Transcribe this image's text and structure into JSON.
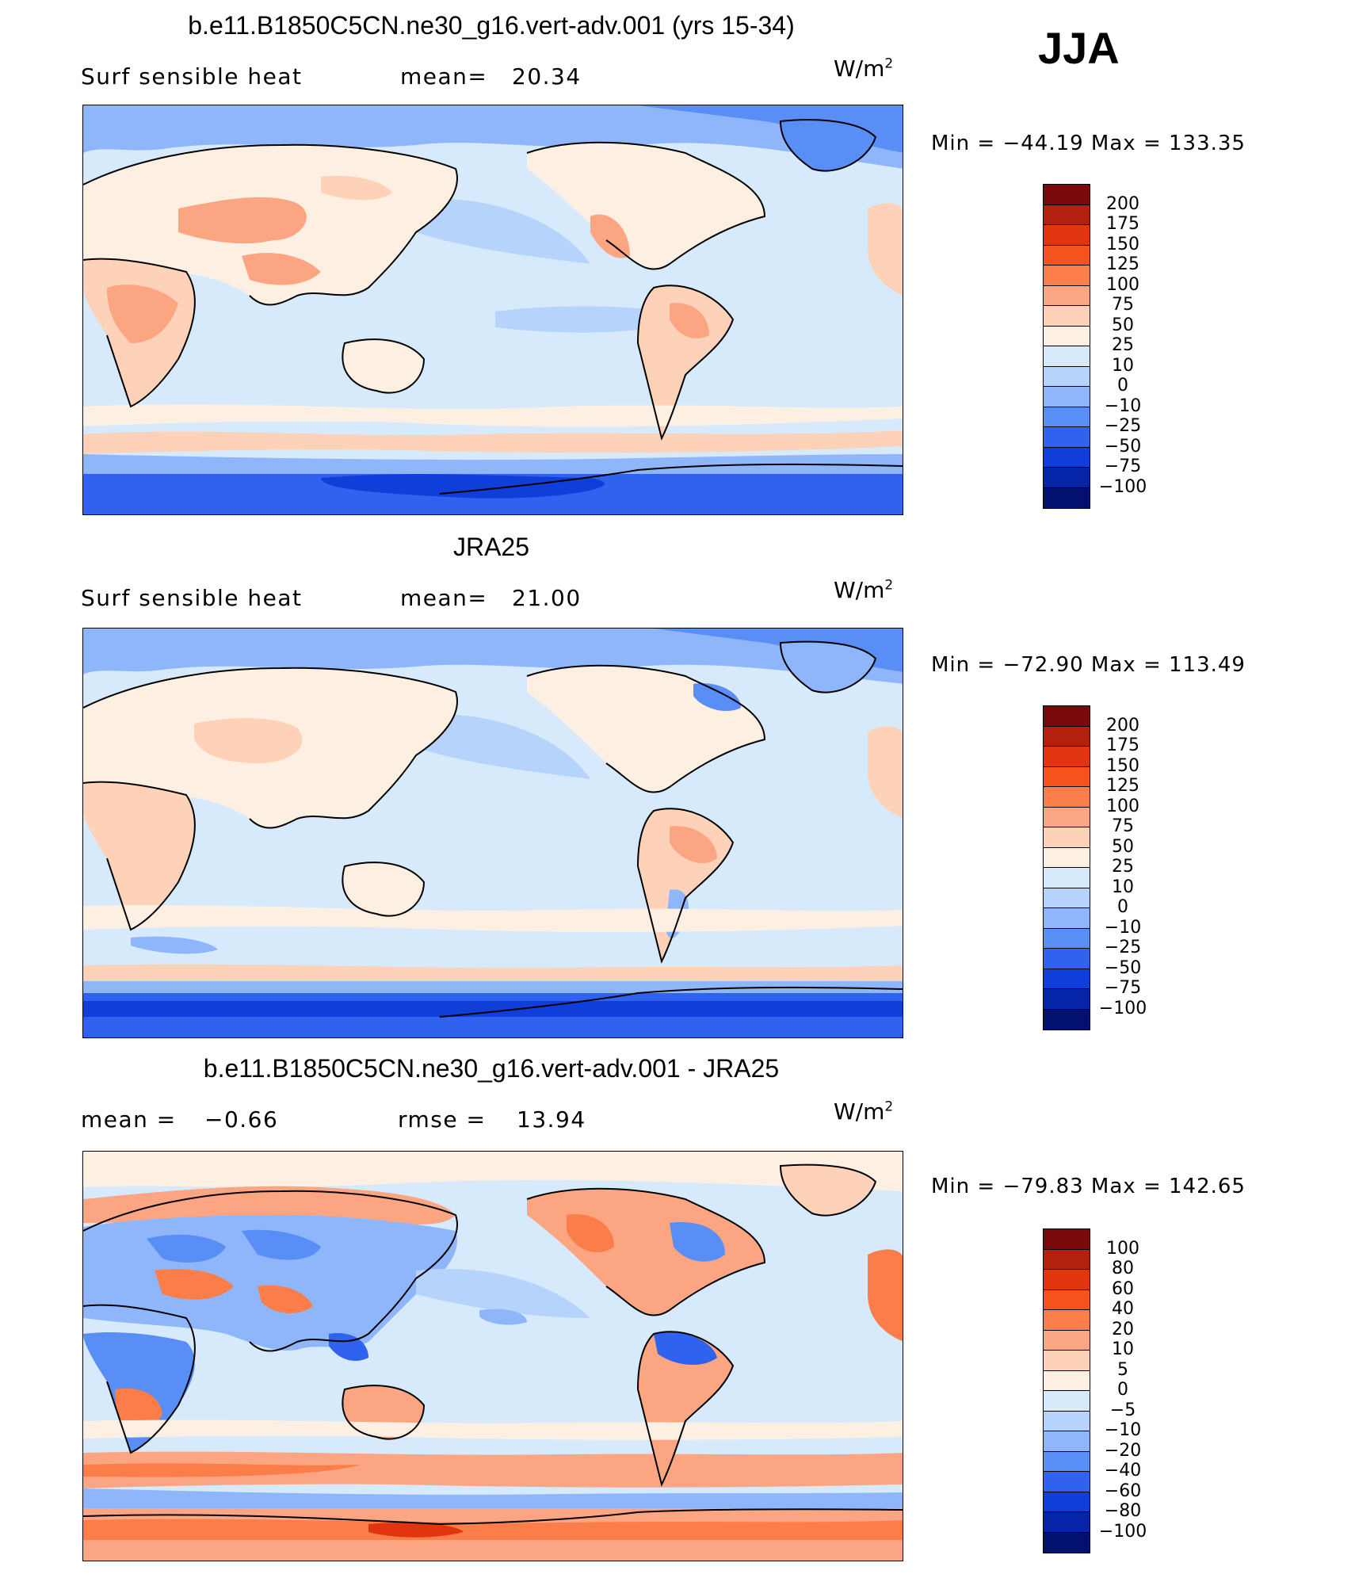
{
  "season": "JJA",
  "panels": [
    {
      "title": "b.e11.B1850C5CN.ne30_g16.vert-adv.001 (yrs 15-34)",
      "left_label": "Surf  sensible  heat",
      "stat1_label": "mean=",
      "stat1_value": "20.34",
      "units": "W/m",
      "units_sup": "2",
      "minmax": "Min  =  −44.19  Max  =  133.35",
      "colorbar": {
        "colors": [
          "#7a0a0a",
          "#b3200d",
          "#e0350f",
          "#f4541c",
          "#fb7d4a",
          "#fca583",
          "#fdd2b8",
          "#fdf0e2",
          "#d6eafc",
          "#b6d3fb",
          "#8fb6fb",
          "#5a8ef7",
          "#2f63ef",
          "#0f3ed9",
          "#0524a8",
          "#02106e"
        ],
        "labels": [
          "200",
          "175",
          "150",
          "125",
          "100",
          "75",
          "50",
          "25",
          "10",
          "0",
          "−10",
          "−25",
          "−50",
          "−75",
          "−100"
        ]
      }
    },
    {
      "title": "JRA25",
      "left_label": "Surf  sensible  heat",
      "stat1_label": "mean=",
      "stat1_value": "21.00",
      "units": "W/m",
      "units_sup": "2",
      "minmax": "Min  =  −72.90  Max  =  113.49",
      "colorbar": {
        "colors": [
          "#7a0a0a",
          "#b3200d",
          "#e0350f",
          "#f4541c",
          "#fb7d4a",
          "#fca583",
          "#fdd2b8",
          "#fdf0e2",
          "#d6eafc",
          "#b6d3fb",
          "#8fb6fb",
          "#5a8ef7",
          "#2f63ef",
          "#0f3ed9",
          "#0524a8",
          "#02106e"
        ],
        "labels": [
          "200",
          "175",
          "150",
          "125",
          "100",
          "75",
          "50",
          "25",
          "10",
          "0",
          "−10",
          "−25",
          "−50",
          "−75",
          "−100"
        ]
      }
    },
    {
      "title": "b.e11.B1850C5CN.ne30_g16.vert-adv.001 - JRA25",
      "left_label": "mean  =",
      "left_value": "−0.66",
      "stat1_label": "rmse  =",
      "stat1_value": "13.94",
      "units": "W/m",
      "units_sup": "2",
      "minmax": "Min  =  −79.83  Max  =  142.65",
      "colorbar": {
        "colors": [
          "#7a0a0a",
          "#b3200d",
          "#e0350f",
          "#f4541c",
          "#fb7d4a",
          "#fca583",
          "#fdd2b8",
          "#fdf0e2",
          "#d6eafc",
          "#b6d3fb",
          "#8fb6fb",
          "#5a8ef7",
          "#2f63ef",
          "#0f3ed9",
          "#0524a8",
          "#02106e"
        ],
        "labels": [
          "100",
          "80",
          "60",
          "40",
          "20",
          "10",
          "5",
          "0",
          "−5",
          "−10",
          "−20",
          "−40",
          "−60",
          "−80",
          "−100"
        ]
      }
    }
  ]
}
